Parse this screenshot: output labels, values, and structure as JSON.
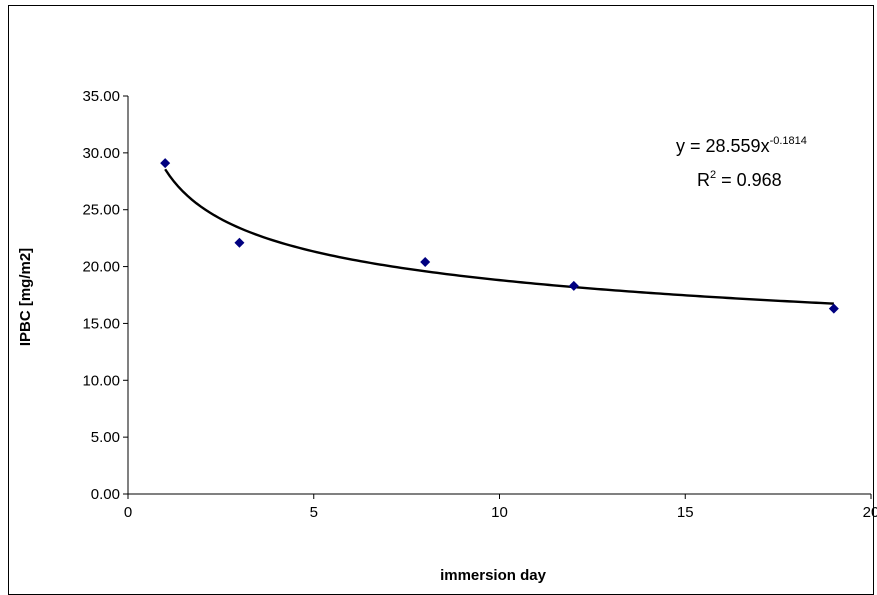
{
  "chart_data": {
    "type": "scatter",
    "xlabel": "immersion day",
    "ylabel": "IPBC [mg/m2]",
    "xlim": [
      0,
      20
    ],
    "ylim": [
      0,
      35
    ],
    "x_ticks": [
      "0",
      "5",
      "10",
      "15",
      "20"
    ],
    "y_ticks": [
      "0.00",
      "5.00",
      "10.00",
      "15.00",
      "20.00",
      "25.00",
      "30.00",
      "35.00"
    ],
    "grid": false,
    "legend": "none",
    "series": [
      {
        "x": [
          1,
          3,
          8,
          12,
          19
        ],
        "y": [
          29.1,
          22.1,
          20.4,
          18.3,
          16.3
        ]
      }
    ],
    "trendline": {
      "type": "power",
      "a": 28.559,
      "b": -0.1814,
      "equation_main": "y = 28.559x",
      "equation_exponent": "-0.1814",
      "r2_label": "R",
      "r2_exponent": "2",
      "r2_value": " = 0.968"
    },
    "colors": {
      "marker": "#000080",
      "trendline": "#000000"
    }
  }
}
